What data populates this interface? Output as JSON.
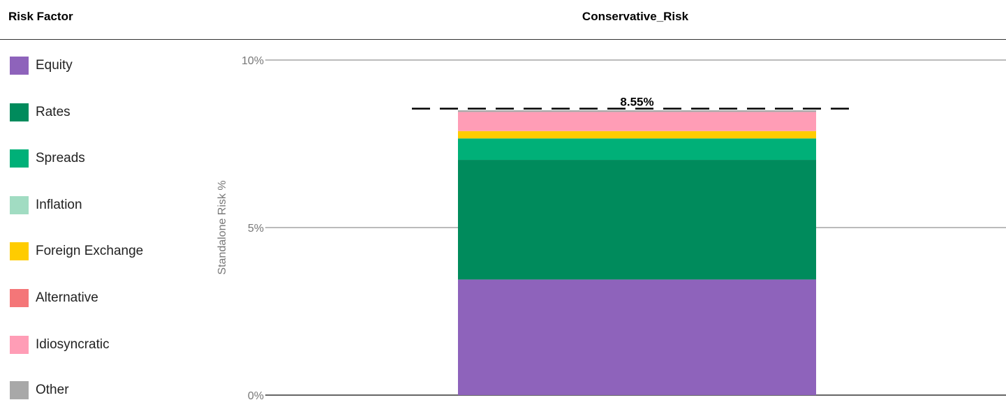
{
  "header": {
    "left_title": "Risk Factor",
    "chart_title": "Conservative_Risk"
  },
  "legend": [
    {
      "label": "Equity",
      "color": "#8e63bb"
    },
    {
      "label": "Rates",
      "color": "#008b5c"
    },
    {
      "label": "Spreads",
      "color": "#00b078"
    },
    {
      "label": "Inflation",
      "color": "#a1dcc2"
    },
    {
      "label": "Foreign Exchange",
      "color": "#ffcc00"
    },
    {
      "label": "Alternative",
      "color": "#f47678"
    },
    {
      "label": "Idiosyncratic",
      "color": "#ff9db6"
    },
    {
      "label": "Other",
      "color": "#a8a8a8"
    }
  ],
  "chart_data": {
    "type": "bar",
    "stacked": true,
    "categories": [
      "Conservative_Risk"
    ],
    "ylabel": "Standalone Risk %",
    "ylim": [
      0,
      10
    ],
    "yticks": [
      0,
      5,
      10
    ],
    "ytick_labels": [
      "0%",
      "5%",
      "10%"
    ],
    "grid": true,
    "legend_position": "left",
    "total_label": "8.55%",
    "total_value": 8.55,
    "series": [
      {
        "name": "Equity",
        "values": [
          3.45
        ],
        "color": "#8e63bb"
      },
      {
        "name": "Rates",
        "values": [
          3.57
        ],
        "color": "#008b5c"
      },
      {
        "name": "Spreads",
        "values": [
          0.64
        ],
        "color": "#00b078"
      },
      {
        "name": "Inflation",
        "values": [
          0.0
        ],
        "color": "#a1dcc2"
      },
      {
        "name": "Foreign Exchange",
        "values": [
          0.22
        ],
        "color": "#ffcc00"
      },
      {
        "name": "Alternative",
        "values": [
          0.0
        ],
        "color": "#f47678"
      },
      {
        "name": "Idiosyncratic",
        "values": [
          0.57
        ],
        "color": "#ff9db6"
      },
      {
        "name": "Other",
        "values": [
          0.05
        ],
        "color": "#a8a8a8"
      }
    ]
  }
}
